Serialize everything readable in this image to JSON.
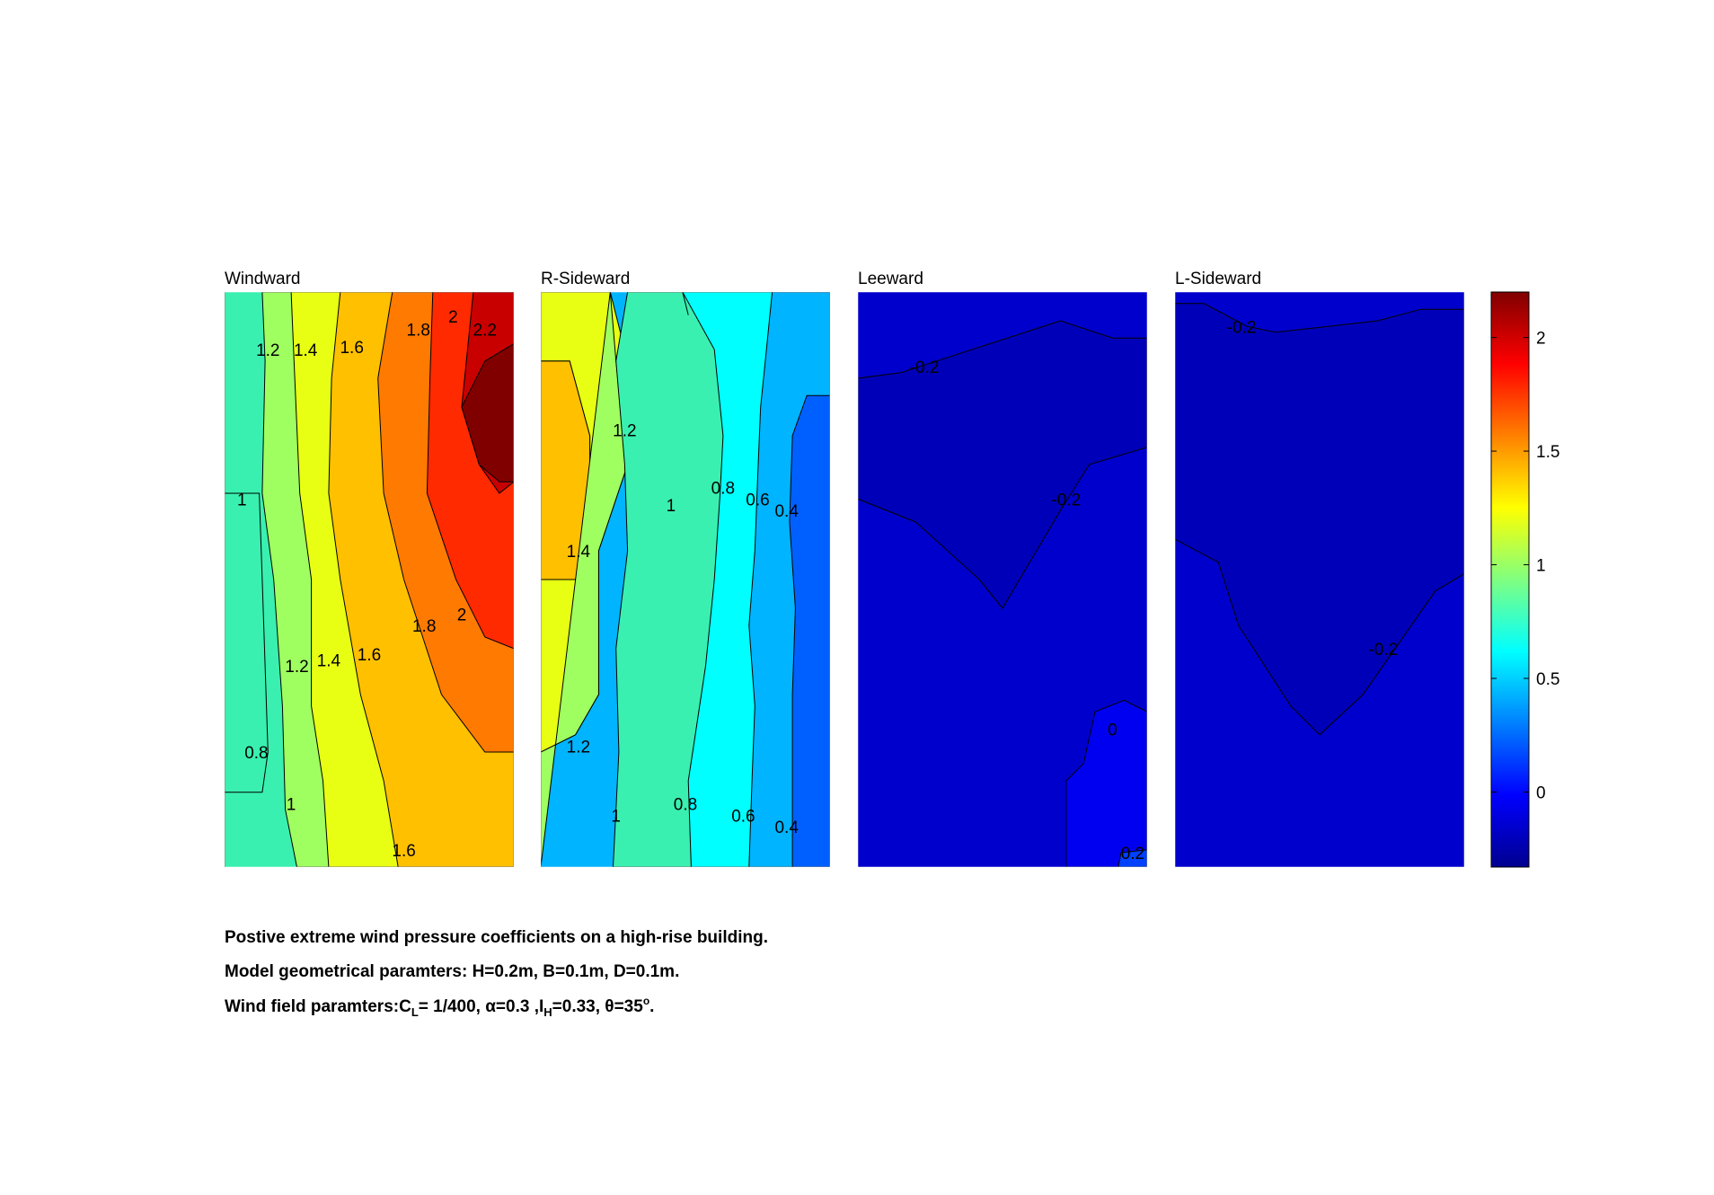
{
  "chart_data": {
    "type": "heatmap",
    "panels": [
      {
        "title": "Windward",
        "bands": [
          {
            "level": "1",
            "color": "#39f0b0",
            "pts": [
              [
                0,
                0
              ],
              [
                0,
                0.35
              ],
              [
                0.12,
                0.35
              ],
              [
                0.13,
                0.5
              ],
              [
                0.15,
                0.8
              ],
              [
                0.13,
                0.87
              ],
              [
                0,
                0.87
              ],
              [
                0,
                1
              ]
            ],
            "closeLeft": true
          },
          {
            "level": "1.2",
            "color": "#a0ff60",
            "pts": [
              [
                0.13,
                0
              ],
              [
                0.14,
                0.12
              ],
              [
                0.13,
                0.35
              ],
              [
                0.17,
                0.5
              ],
              [
                0.2,
                0.72
              ],
              [
                0.21,
                0.9
              ],
              [
                0.25,
                1
              ]
            ]
          },
          {
            "level": "1.4",
            "color": "#e8ff14",
            "pts": [
              [
                0.23,
                0
              ],
              [
                0.24,
                0.12
              ],
              [
                0.26,
                0.35
              ],
              [
                0.3,
                0.5
              ],
              [
                0.3,
                0.72
              ],
              [
                0.34,
                0.85
              ],
              [
                0.36,
                1
              ]
            ]
          },
          {
            "level": "1.6",
            "color": "#ffc000",
            "pts": [
              [
                0.4,
                0
              ],
              [
                0.37,
                0.15
              ],
              [
                0.36,
                0.35
              ],
              [
                0.4,
                0.5
              ],
              [
                0.47,
                0.7
              ],
              [
                0.55,
                0.85
              ],
              [
                0.6,
                1
              ]
            ]
          },
          {
            "level": "1.8",
            "color": "#ff7a00",
            "pts": [
              [
                0.58,
                0
              ],
              [
                0.53,
                0.15
              ],
              [
                0.55,
                0.35
              ],
              [
                0.62,
                0.5
              ],
              [
                0.75,
                0.7
              ],
              [
                0.9,
                0.8
              ],
              [
                1,
                0.8
              ]
            ]
          },
          {
            "level": "2",
            "color": "#ff2a00",
            "pts": [
              [
                0.72,
                0
              ],
              [
                0.71,
                0.15
              ],
              [
                0.7,
                0.35
              ],
              [
                0.8,
                0.5
              ],
              [
                0.9,
                0.6
              ],
              [
                1,
                0.62
              ]
            ]
          },
          {
            "level": "2.2",
            "color": "#c80000",
            "pts": [
              [
                0.86,
                0
              ],
              [
                0.82,
                0.2
              ],
              [
                0.88,
                0.3
              ],
              [
                0.95,
                0.35
              ],
              [
                1,
                0.33
              ]
            ]
          },
          {
            "level": "",
            "color": "#800000",
            "pts": [
              [
                1,
                0.09
              ],
              [
                0.9,
                0.12
              ],
              [
                0.82,
                0.2
              ],
              [
                0.88,
                0.3
              ],
              [
                0.95,
                0.33
              ],
              [
                1,
                0.33
              ]
            ],
            "closed": true
          }
        ],
        "labels": [
          {
            "text": "1.2",
            "x": 0.15,
            "y": 0.1
          },
          {
            "text": "1.4",
            "x": 0.28,
            "y": 0.1
          },
          {
            "text": "1.6",
            "x": 0.44,
            "y": 0.095
          },
          {
            "text": "1.8",
            "x": 0.67,
            "y": 0.065
          },
          {
            "text": "2",
            "x": 0.79,
            "y": 0.042
          },
          {
            "text": "2.2",
            "x": 0.9,
            "y": 0.065
          },
          {
            "text": "1",
            "x": 0.06,
            "y": 0.36
          },
          {
            "text": "1.8",
            "x": 0.69,
            "y": 0.58
          },
          {
            "text": "2",
            "x": 0.82,
            "y": 0.56
          },
          {
            "text": "1.2",
            "x": 0.25,
            "y": 0.65
          },
          {
            "text": "1.4",
            "x": 0.36,
            "y": 0.64
          },
          {
            "text": "1.6",
            "x": 0.5,
            "y": 0.63
          },
          {
            "text": "0.8",
            "x": 0.11,
            "y": 0.8
          },
          {
            "text": "1",
            "x": 0.23,
            "y": 0.89
          },
          {
            "text": "1.6",
            "x": 0.62,
            "y": 0.97
          }
        ]
      },
      {
        "title": "R-Sideward",
        "bands": [
          {
            "level": "1.4",
            "color": "#ffc000",
            "pts": [
              [
                0,
                0
              ],
              [
                0,
                0.5
              ],
              [
                0.12,
                0.5
              ],
              [
                0.17,
                0.4
              ],
              [
                0.17,
                0.25
              ],
              [
                0.1,
                0.12
              ],
              [
                0,
                0.12
              ],
              [
                0,
                1
              ]
            ],
            "closeLeft": true
          },
          {
            "level": "1.2",
            "color": "#e8ff14",
            "pts": [
              [
                0,
                0
              ],
              [
                0,
                0.12
              ],
              [
                0.1,
                0.12
              ],
              [
                0.17,
                0.25
              ],
              [
                0.17,
                0.4
              ],
              [
                0.12,
                0.5
              ],
              [
                0,
                0.5
              ],
              [
                0,
                0.8
              ],
              [
                0.12,
                0.77
              ],
              [
                0.2,
                0.7
              ],
              [
                0.2,
                0.45
              ],
              [
                0.3,
                0.3
              ],
              [
                0.3,
                0.12
              ],
              [
                0.24,
                0
              ]
            ],
            "closeLeft": true
          },
          {
            "level": "1",
            "color": "#a0ff60",
            "pts": [
              [
                0.24,
                0
              ],
              [
                0.26,
                0.12
              ],
              [
                0.3,
                0.3
              ],
              [
                0.2,
                0.45
              ],
              [
                0.2,
                0.7
              ],
              [
                0.12,
                0.77
              ],
              [
                0,
                0.8
              ],
              [
                0,
                1
              ]
            ],
            "closeLeft": true
          },
          {
            "level": "0.8",
            "color": "#39f0b0",
            "pts": [
              [
                0.3,
                0
              ],
              [
                0.26,
                0.12
              ],
              [
                0.29,
                0.3
              ],
              [
                0.3,
                0.45
              ],
              [
                0.26,
                0.62
              ],
              [
                0.27,
                0.8
              ],
              [
                0.25,
                1
              ]
            ]
          },
          {
            "level": "0.6",
            "color": "#00ffff",
            "pts": [
              [
                0.49,
                0
              ],
              [
                0.5,
                0.02
              ],
              [
                0.51,
                0.04
              ],
              [
                0.49,
                0
              ],
              [
                0.6,
                0.1
              ],
              [
                0.61,
                0.15
              ],
              [
                0.63,
                0.25
              ],
              [
                0.62,
                0.35
              ],
              [
                0.6,
                0.5
              ],
              [
                0.57,
                0.65
              ],
              [
                0.54,
                0.75
              ],
              [
                0.51,
                0.85
              ],
              [
                0.52,
                1
              ]
            ]
          },
          {
            "level": "0.4",
            "color": "#00b4ff",
            "pts": [
              [
                0.8,
                0
              ],
              [
                0.78,
                0.1
              ],
              [
                0.76,
                0.2
              ],
              [
                0.75,
                0.32
              ],
              [
                0.74,
                0.45
              ],
              [
                0.72,
                0.58
              ],
              [
                0.74,
                0.72
              ],
              [
                0.73,
                0.85
              ],
              [
                0.72,
                1
              ]
            ]
          },
          {
            "level": "0.2",
            "color": "#0060ff",
            "pts": [
              [
                1,
                0.18
              ],
              [
                0.92,
                0.18
              ],
              [
                0.87,
                0.25
              ],
              [
                0.86,
                0.4
              ],
              [
                0.88,
                0.55
              ],
              [
                0.87,
                0.7
              ],
              [
                0.87,
                1
              ]
            ]
          }
        ],
        "labels": [
          {
            "text": "1.2",
            "x": 0.29,
            "y": 0.24
          },
          {
            "text": "1",
            "x": 0.45,
            "y": 0.37
          },
          {
            "text": "0.8",
            "x": 0.63,
            "y": 0.34
          },
          {
            "text": "0.6",
            "x": 0.75,
            "y": 0.36
          },
          {
            "text": "0.4",
            "x": 0.85,
            "y": 0.38
          },
          {
            "text": "1.4",
            "x": 0.13,
            "y": 0.45
          },
          {
            "text": "1.2",
            "x": 0.13,
            "y": 0.79
          },
          {
            "text": "1",
            "x": 0.26,
            "y": 0.91
          },
          {
            "text": "0.8",
            "x": 0.5,
            "y": 0.89
          },
          {
            "text": "0.6",
            "x": 0.7,
            "y": 0.91
          },
          {
            "text": "0.4",
            "x": 0.85,
            "y": 0.93
          }
        ]
      },
      {
        "title": "Leeward",
        "bands": [
          {
            "level": "-0.2",
            "color": "#0000b8",
            "pts": [
              [
                0,
                0.15
              ],
              [
                0.15,
                0.14
              ],
              [
                0.7,
                0.05
              ],
              [
                0.88,
                0.08
              ],
              [
                1,
                0.08
              ],
              [
                1,
                0.27
              ],
              [
                0.8,
                0.3
              ],
              [
                0.7,
                0.38
              ],
              [
                0.5,
                0.55
              ],
              [
                0.42,
                0.5
              ],
              [
                0.2,
                0.4
              ],
              [
                0,
                0.36
              ]
            ],
            "closed": true
          },
          {
            "level": "0",
            "color": "#0000f0",
            "pts": [
              [
                0.72,
                1
              ],
              [
                0.72,
                0.85
              ],
              [
                0.78,
                0.82
              ],
              [
                0.82,
                0.73
              ],
              [
                0.92,
                0.71
              ],
              [
                1,
                0.73
              ],
              [
                1,
                1
              ]
            ],
            "closed": true
          },
          {
            "level": "0.2",
            "color": "#0040ff",
            "pts": [
              [
                0.9,
                1
              ],
              [
                0.91,
                0.975
              ],
              [
                1,
                0.97
              ],
              [
                1,
                1
              ]
            ],
            "closed": true
          }
        ],
        "labels": [
          {
            "text": "-0.2",
            "x": 0.23,
            "y": 0.13
          },
          {
            "text": "-0.2",
            "x": 0.72,
            "y": 0.36
          },
          {
            "text": "0",
            "x": 0.88,
            "y": 0.76
          },
          {
            "text": "0.2",
            "x": 0.95,
            "y": 0.975
          }
        ]
      },
      {
        "title": "L-Sideward",
        "bands": [
          {
            "level": "-0.2",
            "color": "#0000b8",
            "pts": [
              [
                0,
                0.02
              ],
              [
                0.1,
                0.02
              ],
              [
                0.25,
                0.06
              ],
              [
                0.35,
                0.07
              ],
              [
                0.7,
                0.05
              ],
              [
                0.85,
                0.03
              ],
              [
                1,
                0.03
              ],
              [
                1,
                0.49
              ],
              [
                0.9,
                0.52
              ],
              [
                0.65,
                0.7
              ],
              [
                0.5,
                0.77
              ],
              [
                0.4,
                0.72
              ],
              [
                0.22,
                0.58
              ],
              [
                0.15,
                0.47
              ],
              [
                0,
                0.43
              ]
            ],
            "closed": true
          }
        ],
        "labels": [
          {
            "text": "-0.2",
            "x": 0.23,
            "y": 0.06
          },
          {
            "text": "-0.2",
            "x": 0.72,
            "y": 0.62
          }
        ]
      }
    ],
    "colorbar": {
      "min": -0.33,
      "max": 2.2,
      "ticks": [
        {
          "value": 2,
          "label": "2"
        },
        {
          "value": 1.5,
          "label": "1.5"
        },
        {
          "value": 1,
          "label": "1"
        },
        {
          "value": 0.5,
          "label": "0.5"
        },
        {
          "value": 0,
          "label": "0"
        }
      ],
      "stops": [
        "#000090",
        "#0000ff",
        "#0080ff",
        "#00ffff",
        "#80ff80",
        "#ffff00",
        "#ff8000",
        "#ff0000",
        "#800000"
      ]
    },
    "background_color": "#0000cc"
  },
  "caption": {
    "line1": "Postive extreme  wind pressure coefficients on a high-rise building.",
    "line2": "Model geometrical paramters: H=0.2m, B=0.1m, D=0.1m.",
    "line3_a": "Wind field paramters:C",
    "line3_sub1": "L",
    "line3_b": "= 1/400, α=0.3 ,I",
    "line3_sub2": "H",
    "line3_c": "=0.33, θ=35",
    "line3_sup": "o",
    "line3_d": "."
  }
}
